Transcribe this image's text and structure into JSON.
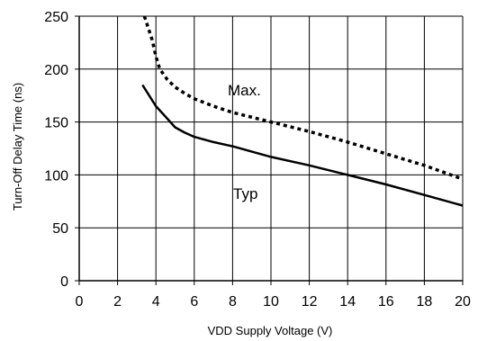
{
  "chart_data": {
    "type": "line",
    "xlabel": "VDD Supply Voltage (V)",
    "ylabel": "Turn-Off Delay Time (ns)",
    "xlim": [
      0,
      20
    ],
    "ylim": [
      0,
      250
    ],
    "x_ticks": [
      "0",
      "2",
      "4",
      "6",
      "8",
      "10",
      "12",
      "14",
      "16",
      "18",
      "20"
    ],
    "y_ticks": [
      "0",
      "50",
      "100",
      "150",
      "200",
      "250"
    ],
    "grid": true,
    "series": [
      {
        "name": "Max.",
        "style": "dashed",
        "x": [
          3.4,
          3.8,
          4.0,
          4.2,
          4.6,
          5.0,
          5.5,
          6.0,
          7.0,
          8.0,
          10.0,
          12.0,
          14.0,
          16.0,
          18.0,
          20.0
        ],
        "y": [
          250,
          228,
          212,
          200,
          190,
          183,
          177,
          172,
          165,
          159,
          150,
          141,
          131,
          120,
          109,
          96
        ]
      },
      {
        "name": "Typ",
        "style": "solid",
        "x": [
          3.3,
          4.0,
          4.5,
          5.0,
          5.5,
          6.0,
          7.0,
          8.0,
          10.0,
          12.0,
          14.0,
          16.0,
          18.0,
          20.0
        ],
        "y": [
          185,
          165,
          155,
          145,
          140,
          136,
          131,
          127,
          117,
          109,
          100,
          91,
          81,
          71
        ]
      }
    ]
  }
}
